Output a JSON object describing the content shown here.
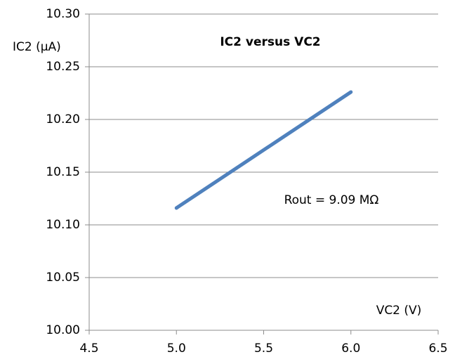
{
  "chart_data": {
    "type": "line",
    "title": "IC2 versus VC2",
    "y_label": "IC2 (µA)",
    "x_label": "VC2 (V)",
    "annotation": "Rout = 9.09 MΩ",
    "x": [
      5.0,
      5.2,
      5.4,
      5.6,
      5.8,
      6.0
    ],
    "series": [
      {
        "color": "#4f81bd",
        "values": [
          10.116,
          10.138,
          10.16,
          10.182,
          10.204,
          10.226
        ]
      }
    ],
    "xlim": [
      4.5,
      6.5
    ],
    "xticks": [
      4.5,
      {
        "value": 5,
        "label": "5.0"
      },
      5.5,
      {
        "value": 6,
        "label": "6.0"
      },
      6.5
    ],
    "ylim": [
      10,
      10.3
    ],
    "yticks": [
      {
        "value": 10,
        "label": "10.00"
      },
      10.05,
      {
        "value": 10.1,
        "label": "10.10"
      },
      10.15,
      {
        "value": 10.2,
        "label": "10.20"
      },
      10.25,
      {
        "value": 10.3,
        "label": "10.30"
      }
    ],
    "grid": true
  }
}
